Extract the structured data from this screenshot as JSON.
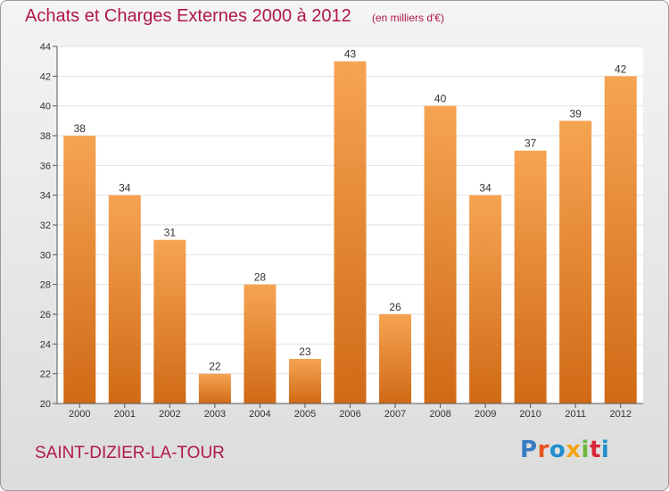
{
  "header": {
    "title": "Achats et Charges Externes 2000 à 2012",
    "unit": "(en milliers d'€)"
  },
  "footer": {
    "commune": "SAINT-DIZIER-LA-TOUR",
    "logo_text": "Proxiti",
    "logo_colors": [
      "#3a7cc4",
      "#e8531f",
      "#1f8fce",
      "#f2a313",
      "#6ab73c",
      "#d9263b",
      "#1f8fce"
    ]
  },
  "colors": {
    "title": "#b0164e",
    "bar_top": "#f6a452",
    "bar_bottom": "#d06a16",
    "plot_bg": "#ffffff"
  },
  "chart_data": {
    "type": "bar",
    "categories": [
      "2000",
      "2001",
      "2002",
      "2003",
      "2004",
      "2005",
      "2006",
      "2007",
      "2008",
      "2009",
      "2010",
      "2011",
      "2012"
    ],
    "values": [
      38,
      34,
      31,
      22,
      28,
      23,
      43,
      26,
      40,
      34,
      37,
      39,
      42
    ],
    "title": "Achats et Charges Externes 2000 à 2012",
    "xlabel": "",
    "ylabel": "",
    "ylim": [
      20,
      44
    ],
    "yticks": [
      20,
      22,
      24,
      26,
      28,
      30,
      32,
      34,
      36,
      38,
      40,
      42,
      44
    ],
    "grid": true,
    "legend": "none"
  }
}
